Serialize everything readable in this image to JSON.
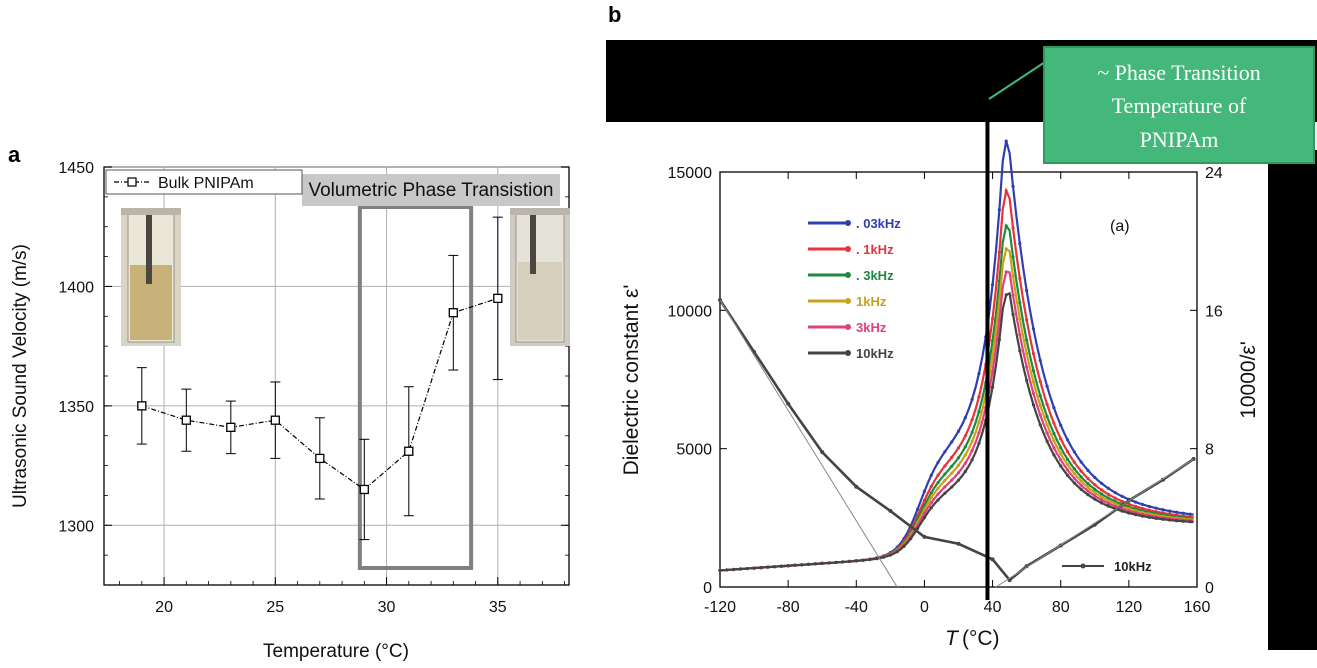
{
  "chart_data": [
    {
      "panel": "a",
      "type": "line",
      "xlabel": "Temperature (°C)",
      "ylabel": "Ultrasonic Sound Velocity (m/s)",
      "xlim": [
        17.3,
        38.2
      ],
      "ylim": [
        1275,
        1450
      ],
      "xticks": [
        20,
        25,
        30,
        35
      ],
      "yticks": [
        1300,
        1350,
        1400,
        1450
      ],
      "grid": true,
      "legend_position": "top-left",
      "series": [
        {
          "name": "Bulk PNIPAm",
          "x": [
            19,
            21,
            23,
            25,
            27,
            29,
            31,
            33,
            35
          ],
          "y": [
            1350,
            1344,
            1341,
            1344,
            1328,
            1315,
            1331,
            1389,
            1395
          ],
          "error": [
            16,
            13,
            11,
            16,
            17,
            21,
            27,
            24,
            34
          ],
          "color": "#000000"
        }
      ],
      "annotation": {
        "label": "Volumetric Phase Transistion",
        "x_range": [
          28.8,
          33.8
        ]
      }
    },
    {
      "panel": "b",
      "type": "line",
      "xlabel": "T",
      "xlabel_unit": "(°C)",
      "ylabel": "Dielectric constant ε'",
      "y2label": "10000/ε'",
      "xlim": [
        -120,
        160
      ],
      "ylim": [
        0,
        15000
      ],
      "y2lim": [
        0,
        24
      ],
      "xticks": [
        -120,
        -80,
        -40,
        0,
        40,
        80,
        120,
        160
      ],
      "yticks": [
        0,
        5000,
        10000,
        15000
      ],
      "y2ticks": [
        0,
        8,
        16,
        24
      ],
      "panel_label": "(a)",
      "series": [
        {
          "name": ". 03kHz",
          "color": "#2f3fb0",
          "peak": 14500,
          "step": 6400
        },
        {
          "name": ". 1kHz",
          "color": "#e8333a",
          "peak": 13000,
          "step": 5500
        },
        {
          "name": ". 3kHz",
          "color": "#1e8a3e",
          "peak": 11900,
          "step": 5000
        },
        {
          "name": "1kHz",
          "color": "#c9a21a",
          "peak": 11200,
          "step": 4600
        },
        {
          "name": "3kHz",
          "color": "#e0407e",
          "peak": 10500,
          "step": 4200
        },
        {
          "name": "10kHz",
          "color": "#444444",
          "peak": 9800,
          "step": 3800
        }
      ],
      "inverse_series": {
        "name": "10kHz",
        "x": [
          -120,
          -100,
          -80,
          -60,
          -40,
          -20,
          0,
          20,
          40,
          50,
          60,
          80,
          100,
          120,
          140,
          158
        ],
        "y": [
          16.6,
          13.6,
          10.6,
          7.8,
          5.8,
          4.4,
          2.9,
          2.5,
          1.6,
          0.4,
          1.2,
          2.4,
          3.6,
          5.0,
          6.2,
          7.4
        ]
      },
      "callout": {
        "lines": [
          "~ Phase Transition",
          "Temperature of",
          "PNIPAm"
        ],
        "color": "#43b87a",
        "x": 37
      }
    }
  ],
  "labels": {
    "panel_a": "a",
    "panel_b": "b"
  }
}
